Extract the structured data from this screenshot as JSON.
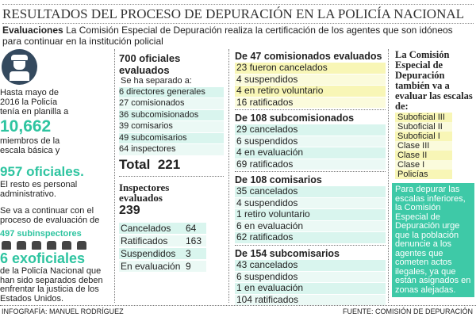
{
  "title": "RESULTADOS DEL PROCESO DE DEPURACIÓN EN LA POLICÍA NACIONAL",
  "subtitle": {
    "lead": "Evaluaciones",
    "text": "La Comisión Especial de Depuración realiza la certificación de los agentes que son idóneos para continuar en la institución policial"
  },
  "left": {
    "icon": "police-officer-icon",
    "p1": "Hasta mayo de 2016 la Policía tenía en planilla a",
    "n1": "10,662",
    "p2": "miembros de la escala básica y",
    "n2": "957 oficiales.",
    "p3": "El resto es personal administrativo.",
    "p4": "Se va a continuar con el proceso de evaluación de",
    "n3": "497 subinspectores",
    "n4": "6 exoficiales",
    "p5": "de la Policía Nacional que han sido separados deben enfrentar la justicia de los Estados Unidos."
  },
  "oficiales": {
    "title": "700 oficiales evaluados",
    "intro": "Se ha separado a:",
    "items": [
      "6 directores generales",
      "27 comisionados",
      "36 subcomisionados",
      "39 comisarios",
      "49 subcomisarios",
      "64 inspectores"
    ],
    "total_label": "Total",
    "total": "221"
  },
  "inspectores": {
    "title": "Inspectores evaluados",
    "count": "239",
    "items": [
      {
        "label": "Cancelados",
        "value": "64"
      },
      {
        "label": "Ratificados",
        "value": "163"
      },
      {
        "label": "Suspendidos",
        "value": "3"
      },
      {
        "label": "En evaluación",
        "value": "9"
      }
    ]
  },
  "groups": [
    {
      "title": "De  47 comisionados evaluados",
      "items": [
        "23 fueron cancelados",
        "4 suspendidos",
        "4 en retiro voluntario",
        "16 ratificados"
      ]
    },
    {
      "title": "De 108 subcomisionados",
      "items": [
        "29 cancelados",
        "6 suspendidos",
        "4 en evaluación",
        "69 ratificados"
      ]
    },
    {
      "title": "De 108 comisarios",
      "items": [
        "35 cancelados",
        "4 suspendidos",
        "1 retiro voluntario",
        "6 en evaluación",
        "62 ratificados"
      ]
    },
    {
      "title": "De 154 subcomisarios",
      "items": [
        "43 cancelados",
        "6 suspendidos",
        "1 en evaluación",
        "104 ratificados"
      ]
    }
  ],
  "right": {
    "heading": "La Comisión Especial de Depuración también va a evaluar las escalas de:",
    "scales": [
      "Suboficial III",
      "Suboficial II",
      "Suboficial I",
      "Clase III",
      "Clase II",
      "Clase I",
      "Policías"
    ],
    "box": "Para depurar las escalas inferiores, la Comisión Especial de Depuración urge que la población denuncie a los agentes que cometen actos ilegales, ya que están asignados en zonas alejadas."
  },
  "footer": {
    "credit": "INFOGRAFÍA: MANUEL RODRÍGUEZ",
    "source": "FUENTE: COMISIÓN DE DEPURACIÓN"
  },
  "colors": {
    "accent": "#2ec4a0",
    "box": "#3ec9a7",
    "teal_row": "#d9f5ee",
    "yellow_row": "#f8f6b6"
  }
}
